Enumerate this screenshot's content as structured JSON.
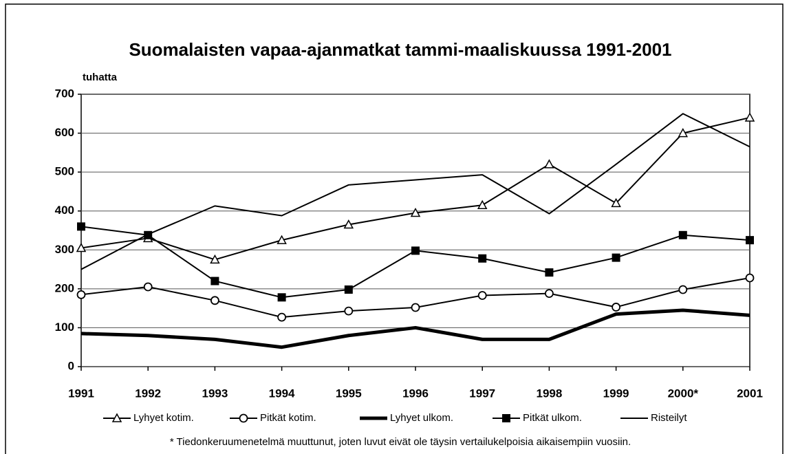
{
  "chart_data": {
    "type": "line",
    "title": "Suomalaisten vapaa-ajanmatkat tammi-maaliskuussa 1991-2001",
    "y_label": "tuhatta",
    "note": "* Tiedonkeruumenetelmä muuttunut, joten luvut eivät ole täysin vertailukelpoisia aikaisempiin vuosiin.",
    "categories": [
      "1991",
      "1992",
      "1993",
      "1994",
      "1995",
      "1996",
      "1997",
      "1998",
      "1999",
      "2000*",
      "2001"
    ],
    "series": [
      {
        "name": "Lyhyet kotim.",
        "color": "#000000",
        "marker": "triangle",
        "line_width": 2,
        "values": [
          305,
          330,
          275,
          325,
          365,
          395,
          415,
          520,
          420,
          600,
          640
        ]
      },
      {
        "name": "Pitkät kotim.",
        "color": "#000000",
        "marker": "circle",
        "line_width": 2,
        "values": [
          185,
          205,
          170,
          127,
          143,
          152,
          183,
          188,
          153,
          198,
          228
        ]
      },
      {
        "name": "Lyhyet ulkom.",
        "color": "#000000",
        "marker": "none",
        "line_width": 5,
        "values": [
          85,
          80,
          70,
          50,
          80,
          100,
          70,
          70,
          135,
          145,
          132
        ]
      },
      {
        "name": "Pitkät ulkom.",
        "color": "#000000",
        "marker": "square",
        "line_width": 2,
        "values": [
          360,
          338,
          220,
          178,
          198,
          298,
          278,
          242,
          280,
          338,
          325
        ]
      },
      {
        "name": "Risteilyt",
        "color": "#000000",
        "marker": "none",
        "line_width": 2,
        "values": [
          250,
          340,
          413,
          388,
          467,
          480,
          493,
          393,
          520,
          650,
          565
        ]
      }
    ],
    "ylim": [
      0,
      700
    ],
    "yticks": [
      0,
      100,
      200,
      300,
      400,
      500,
      600,
      700
    ],
    "grid": true,
    "legend": "bottom"
  }
}
